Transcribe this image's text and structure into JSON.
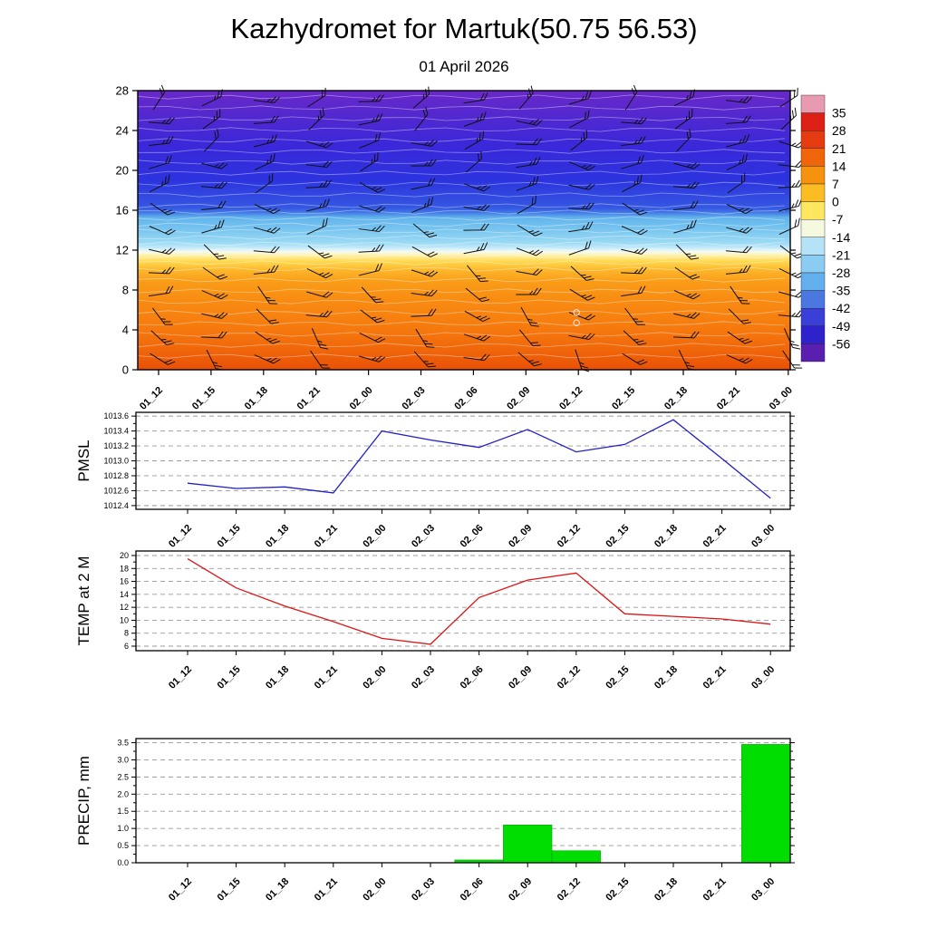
{
  "title": "Kazhydromet for Martuk(50.75 56.53)",
  "subtitle": "01 April 2026",
  "time_labels": [
    "01_12",
    "01_15",
    "01_18",
    "01_21",
    "02_00",
    "02_03",
    "02_06",
    "02_09",
    "02_12",
    "02_15",
    "02_18",
    "02_21",
    "03_00"
  ],
  "chart_data": [
    {
      "type": "heatmap",
      "name": "temperature-height-cross-section",
      "x_ref": "time_labels",
      "y_ticks": [
        "28",
        "24",
        "20",
        "16",
        "12",
        "8",
        "4",
        "0"
      ],
      "y_range": [
        0,
        28
      ],
      "wind_barbs": true,
      "colorbar": {
        "tick_labels": [
          "35",
          "28",
          "21",
          "14",
          "7",
          "0",
          "-7",
          "-14",
          "-21",
          "-28",
          "-35",
          "-42",
          "-49",
          "-56"
        ],
        "segment_colors": [
          "#e79ab0",
          "#dc2016",
          "#e63b10",
          "#f0640a",
          "#f7920e",
          "#fbbc24",
          "#fee65e",
          "#f4f9e0",
          "#b5e2f6",
          "#8bcdf2",
          "#63aeec",
          "#4a78e0",
          "#3a3fd8",
          "#2d22cc",
          "#5a1fb0"
        ]
      },
      "gradient_stops": [
        {
          "offset": 0.0,
          "color": "#6a28c8"
        },
        {
          "offset": 0.1,
          "color": "#5028d0"
        },
        {
          "offset": 0.2,
          "color": "#3a28da"
        },
        {
          "offset": 0.32,
          "color": "#2c33de"
        },
        {
          "offset": 0.42,
          "color": "#3558e2"
        },
        {
          "offset": 0.435,
          "color": "#3f74e6"
        },
        {
          "offset": 0.455,
          "color": "#62b4ec"
        },
        {
          "offset": 0.5,
          "color": "#7ac6f0"
        },
        {
          "offset": 0.545,
          "color": "#9cdaf4"
        },
        {
          "offset": 0.565,
          "color": "#c9edfa"
        },
        {
          "offset": 0.578,
          "color": "#f7fbf0"
        },
        {
          "offset": 0.592,
          "color": "#ffefa0"
        },
        {
          "offset": 0.612,
          "color": "#ffd84e"
        },
        {
          "offset": 0.645,
          "color": "#fcb52a"
        },
        {
          "offset": 0.685,
          "color": "#fa9c18"
        },
        {
          "offset": 0.75,
          "color": "#f88c12"
        },
        {
          "offset": 0.85,
          "color": "#f67a0e"
        },
        {
          "offset": 0.93,
          "color": "#f0660a"
        },
        {
          "offset": 1.0,
          "color": "#e95006"
        }
      ],
      "calm_markers": [
        {
          "col": 8,
          "yfrac": 0.795
        },
        {
          "col": 8,
          "yfrac": 0.832
        }
      ]
    },
    {
      "type": "line",
      "name": "PMSL",
      "ylabel": "PMSL",
      "line_color": "#2020c8",
      "x_ref": "time_labels",
      "values": [
        1012.7,
        1012.63,
        1012.65,
        1012.57,
        1013.4,
        1013.28,
        1013.18,
        1013.42,
        1013.12,
        1013.22,
        1013.55,
        1013.03,
        1012.5
      ],
      "y_tick_labels": [
        "1013.6",
        "1013.4",
        "1013.2",
        "1013.0",
        "1012.8",
        "1012.6",
        "1012.4"
      ],
      "ylim": [
        1012.35,
        1013.65
      ]
    },
    {
      "type": "line",
      "name": "TEMP at 2 M",
      "ylabel": "TEMP at 2 M",
      "line_color": "#dd1414",
      "x_ref": "time_labels",
      "values": [
        19.5,
        15.0,
        12.2,
        9.8,
        7.2,
        6.3,
        13.5,
        16.2,
        17.3,
        11.0,
        10.6,
        10.2,
        9.4
      ],
      "y_tick_labels": [
        "20",
        "18",
        "16",
        "14",
        "12",
        "10",
        "8",
        "6"
      ],
      "ylim": [
        5.3,
        20.7
      ]
    },
    {
      "type": "bar",
      "name": "PRECIP, mm",
      "ylabel": "PRECIP, mm",
      "bar_color": "#00dd00",
      "x_ref": "time_labels",
      "values": [
        0,
        0,
        0,
        0,
        0,
        0,
        0.08,
        1.1,
        0.35,
        0,
        0,
        0,
        3.45
      ],
      "y_tick_labels": [
        "3.5",
        "3.0",
        "2.5",
        "2.0",
        "1.5",
        "1.0",
        "0.5",
        "0.0"
      ],
      "ylim": [
        0,
        3.62
      ]
    }
  ]
}
